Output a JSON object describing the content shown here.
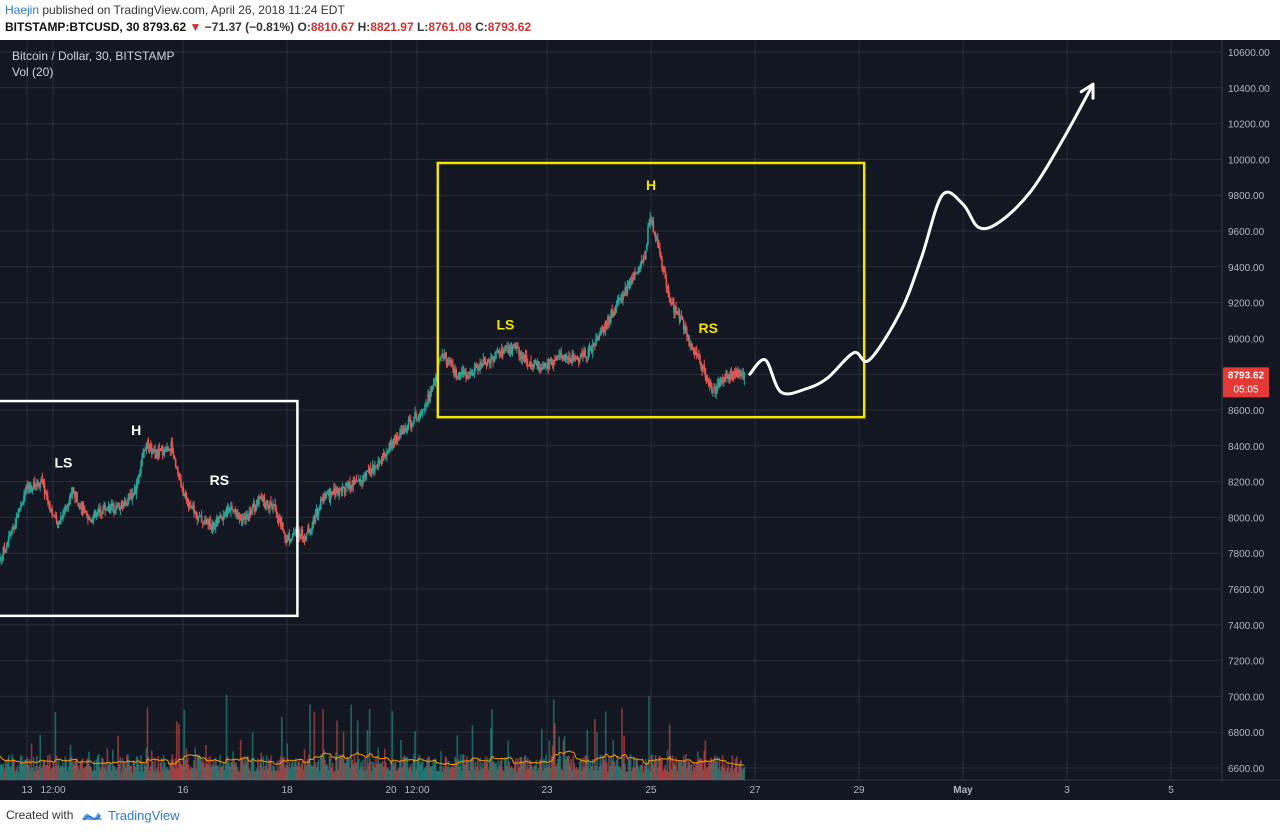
{
  "header": {
    "author": "Haejin",
    "published_text": " published on TradingView.com, April 26, 2018 11:24 EDT",
    "symbol": "BITSTAMP:BTCUSD, 30",
    "last": "8793.62",
    "change_arrow": "▼",
    "change": "−71.37 (−0.81%)",
    "open_label": "O:",
    "open": "8810.67",
    "high_label": "H:",
    "high": "8821.97",
    "low_label": "L:",
    "low": "8761.08",
    "close_label": "C:",
    "close": "8793.62"
  },
  "footer": {
    "created_with": "Created with",
    "brand": "TradingView"
  },
  "chart_data": {
    "type": "candlestick",
    "title": "Bitcoin / Dollar, 30, BITSTAMP",
    "volume_label": "Vol (20)",
    "yaxis_ticks": [
      6600,
      6800,
      7000,
      7200,
      7400,
      7600,
      7800,
      8000,
      8200,
      8400,
      8600,
      8800,
      9000,
      9200,
      9400,
      9600,
      9800,
      10000,
      10200,
      10400,
      10600
    ],
    "xaxis_ticks": [
      {
        "label": "13",
        "day": 13
      },
      {
        "label": "12:00",
        "day": 13.5
      },
      {
        "label": "16",
        "day": 16
      },
      {
        "label": "18",
        "day": 18
      },
      {
        "label": "20",
        "day": 20
      },
      {
        "label": "12:00",
        "day": 20.5
      },
      {
        "label": "23",
        "day": 23
      },
      {
        "label": "25",
        "day": 25
      },
      {
        "label": "27",
        "day": 27
      },
      {
        "label": "29",
        "day": 29
      },
      {
        "label": "May",
        "day": 31
      },
      {
        "label": "3",
        "day": 33
      },
      {
        "label": "5",
        "day": 35
      }
    ],
    "price_path": [
      [
        12.4,
        7700
      ],
      [
        12.7,
        7900
      ],
      [
        13.0,
        8150
      ],
      [
        13.3,
        8200
      ],
      [
        13.6,
        7950
      ],
      [
        13.9,
        8150
      ],
      [
        14.2,
        7980
      ],
      [
        14.5,
        8050
      ],
      [
        14.8,
        8050
      ],
      [
        15.1,
        8150
      ],
      [
        15.3,
        8400
      ],
      [
        15.5,
        8350
      ],
      [
        15.8,
        8400
      ],
      [
        16.0,
        8150
      ],
      [
        16.3,
        8000
      ],
      [
        16.6,
        7950
      ],
      [
        16.9,
        8050
      ],
      [
        17.2,
        7980
      ],
      [
        17.5,
        8100
      ],
      [
        17.8,
        8050
      ],
      [
        18.0,
        7880
      ],
      [
        18.2,
        7920
      ],
      [
        18.4,
        7900
      ],
      [
        18.7,
        8100
      ],
      [
        19.0,
        8150
      ],
      [
        19.4,
        8200
      ],
      [
        19.8,
        8300
      ],
      [
        20.0,
        8400
      ],
      [
        20.3,
        8500
      ],
      [
        20.6,
        8600
      ],
      [
        20.8,
        8700
      ],
      [
        21.0,
        8920
      ],
      [
        21.3,
        8780
      ],
      [
        21.6,
        8820
      ],
      [
        22.0,
        8900
      ],
      [
        22.4,
        8950
      ],
      [
        22.7,
        8850
      ],
      [
        23.0,
        8850
      ],
      [
        23.3,
        8900
      ],
      [
        23.6,
        8880
      ],
      [
        23.9,
        8950
      ],
      [
        24.2,
        9100
      ],
      [
        24.4,
        9200
      ],
      [
        24.6,
        9300
      ],
      [
        24.9,
        9450
      ],
      [
        25.0,
        9700
      ],
      [
        25.2,
        9450
      ],
      [
        25.4,
        9200
      ],
      [
        25.6,
        9100
      ],
      [
        25.8,
        8950
      ],
      [
        26.0,
        8850
      ],
      [
        26.2,
        8700
      ],
      [
        26.4,
        8780
      ],
      [
        26.6,
        8800
      ],
      [
        26.8,
        8793.62
      ]
    ],
    "last_price": "8793.62",
    "countdown": "05:05",
    "annotations": [
      {
        "label": "LS",
        "box": "left"
      },
      {
        "label": "H",
        "box": "left"
      },
      {
        "label": "RS",
        "box": "left"
      },
      {
        "label": "LS",
        "box": "right"
      },
      {
        "label": "H",
        "box": "right"
      },
      {
        "label": "RS",
        "box": "right"
      }
    ],
    "forecast_path": [
      [
        26.9,
        8800
      ],
      [
        27.2,
        8880
      ],
      [
        27.5,
        8700
      ],
      [
        28.0,
        8720
      ],
      [
        28.4,
        8780
      ],
      [
        28.9,
        8920
      ],
      [
        29.2,
        8880
      ],
      [
        29.8,
        9150
      ],
      [
        30.2,
        9450
      ],
      [
        30.6,
        9800
      ],
      [
        31.0,
        9750
      ],
      [
        31.3,
        9620
      ],
      [
        31.7,
        9650
      ],
      [
        32.3,
        9820
      ],
      [
        32.9,
        10100
      ],
      [
        33.5,
        10420
      ]
    ],
    "boxes": [
      {
        "color": "#ffffff",
        "x": [
          12.4,
          18.2
        ],
        "y": [
          7450,
          8650
        ]
      },
      {
        "color": "#f2e600",
        "x": [
          20.9,
          29.1
        ],
        "y": [
          8560,
          9980
        ]
      }
    ],
    "colors": {
      "background": "#131722",
      "grid": "#2a2e39",
      "up": "#26a69a",
      "down": "#ef5350",
      "volume_ma": "#ff9800",
      "price_label_bg": "#e53935",
      "label_yellow": "#f2e600",
      "label_white": "#ffffff",
      "axis_text": "#b2b5be"
    }
  }
}
